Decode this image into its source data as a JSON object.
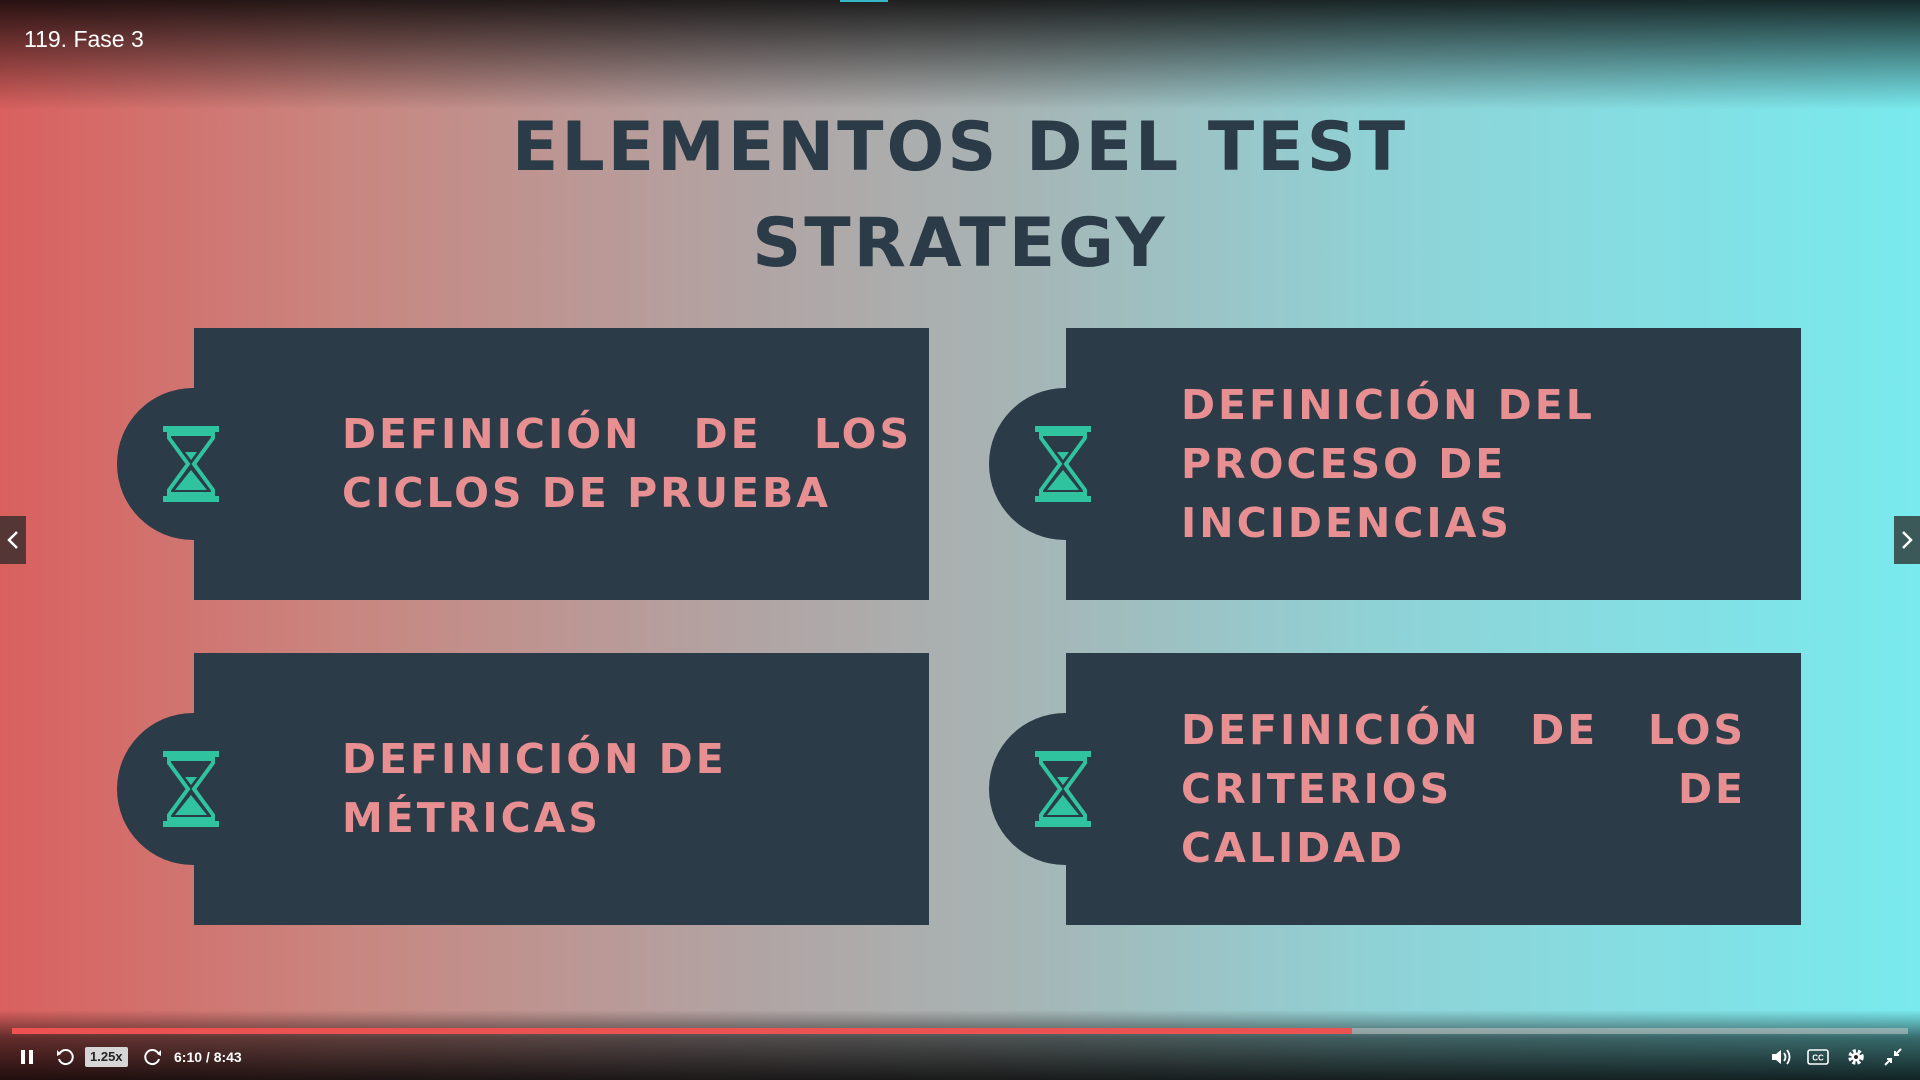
{
  "lecture": {
    "title": "119. Fase 3"
  },
  "slide": {
    "title_line1": "ELEMENTOS DEL TEST",
    "title_line2": "STRATEGY",
    "cards": [
      {
        "line1": "DEFINICIÓN DE LOS",
        "line2": "CICLOS DE PRUEBA",
        "line3": "",
        "icon": "hourglass-icon"
      },
      {
        "line1": "DEFINICIÓN DEL",
        "line2": "PROCESO DE",
        "line3": "INCIDENCIAS",
        "icon": "hourglass-icon"
      },
      {
        "line1": "DEFINICIÓN DE",
        "line2": "MÉTRICAS",
        "line3": "",
        "icon": "hourglass-icon"
      },
      {
        "line1": "DEFINICIÓN DE LOS",
        "line2": "CRITERIOS DE CALIDAD",
        "line3": "",
        "icon": "hourglass-icon"
      }
    ]
  },
  "player": {
    "speed": "1.25x",
    "time": "6:10 / 8:43",
    "progress_fraction": 0.707,
    "icons": [
      "pause-icon",
      "rewind-icon",
      "forward-icon",
      "volume-icon",
      "captions-icon",
      "settings-icon",
      "exit-fullscreen-icon"
    ]
  },
  "colors": {
    "card_bg": "#2b3b48",
    "card_text": "#e88f92",
    "icon": "#2fc3a0",
    "title": "#2b3b47",
    "progress": "#ec5252"
  }
}
